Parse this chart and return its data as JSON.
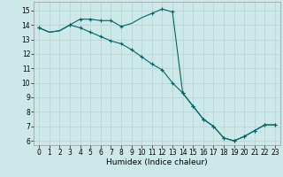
{
  "xlabel": "Humidex (Indice chaleur)",
  "background_color": "#cce8e8",
  "grid_color": "#b8d4d4",
  "line_color": "#006666",
  "xlim": [
    -0.5,
    23.5
  ],
  "ylim": [
    5.7,
    15.6
  ],
  "yticks": [
    6,
    7,
    8,
    9,
    10,
    11,
    12,
    13,
    14,
    15
  ],
  "xticks": [
    0,
    1,
    2,
    3,
    4,
    5,
    6,
    7,
    8,
    9,
    10,
    11,
    12,
    13,
    14,
    15,
    16,
    17,
    18,
    19,
    20,
    21,
    22,
    23
  ],
  "line1_x": [
    0,
    1,
    2,
    3,
    4,
    5,
    6,
    7,
    8,
    9,
    10,
    11,
    12,
    13,
    14,
    15,
    16,
    17,
    18,
    19,
    20,
    21,
    22,
    23
  ],
  "line1_y": [
    13.8,
    13.5,
    13.6,
    14.0,
    14.4,
    14.4,
    14.3,
    14.3,
    13.9,
    14.1,
    14.5,
    14.8,
    15.1,
    14.9,
    9.3,
    8.4,
    7.5,
    7.0,
    6.2,
    6.0,
    6.3,
    6.7,
    7.1,
    7.1
  ],
  "line2_x": [
    0,
    1,
    2,
    3,
    4,
    5,
    6,
    7,
    8,
    9,
    10,
    11,
    12,
    13,
    14,
    15,
    16,
    17,
    18,
    19,
    20,
    21,
    22,
    23
  ],
  "line2_y": [
    13.8,
    13.5,
    13.6,
    14.0,
    13.8,
    13.5,
    13.2,
    12.9,
    12.7,
    12.3,
    11.8,
    11.3,
    10.9,
    10.0,
    9.3,
    8.4,
    7.5,
    7.0,
    6.2,
    6.0,
    6.3,
    6.7,
    7.1,
    7.1
  ],
  "marker1_x": [
    0,
    3,
    4,
    5,
    6,
    7,
    8,
    11,
    12,
    13,
    14,
    15,
    16,
    17,
    18,
    19,
    20,
    21,
    22,
    23
  ],
  "marker1_y": [
    13.8,
    14.0,
    14.4,
    14.4,
    14.3,
    14.3,
    13.9,
    14.8,
    15.1,
    14.9,
    9.3,
    8.4,
    7.5,
    7.0,
    6.2,
    6.0,
    6.3,
    6.7,
    7.1,
    7.1
  ],
  "marker2_x": [
    0,
    3,
    4,
    5,
    6,
    7,
    8,
    9,
    10,
    11,
    12,
    13,
    14,
    15,
    16,
    17,
    18,
    19,
    20,
    21,
    22,
    23
  ],
  "marker2_y": [
    13.8,
    14.0,
    13.8,
    13.5,
    13.2,
    12.9,
    12.7,
    12.3,
    11.8,
    11.3,
    10.9,
    10.0,
    9.3,
    8.4,
    7.5,
    7.0,
    6.2,
    6.0,
    6.3,
    6.7,
    7.1,
    7.1
  ],
  "tick_fontsize": 5.5,
  "xlabel_fontsize": 6.5,
  "linewidth": 0.8,
  "marker_size": 3
}
